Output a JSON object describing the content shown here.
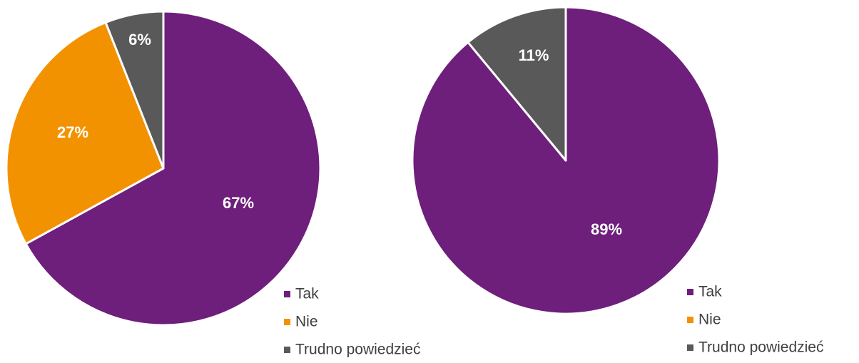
{
  "chart_data": [
    {
      "type": "pie",
      "title": "",
      "legend_position": "bottom-right",
      "categories": [
        "Tak",
        "Nie",
        "Trudno powiedzieć"
      ],
      "values": [
        67,
        27,
        6
      ],
      "value_labels": [
        "67%",
        "27%",
        "6%"
      ],
      "colors": [
        "#6E1E7B",
        "#F39200",
        "#595959"
      ],
      "start": "top",
      "direction": "clockwise"
    },
    {
      "type": "pie",
      "title": "",
      "legend_position": "bottom-right",
      "categories": [
        "Tak",
        "Nie",
        "Trudno powiedzieć"
      ],
      "values": [
        89,
        0,
        11
      ],
      "value_labels": [
        "89%",
        "",
        "11%"
      ],
      "colors": [
        "#6E1E7B",
        "#F39200",
        "#595959"
      ],
      "start": "top",
      "direction": "clockwise"
    }
  ]
}
